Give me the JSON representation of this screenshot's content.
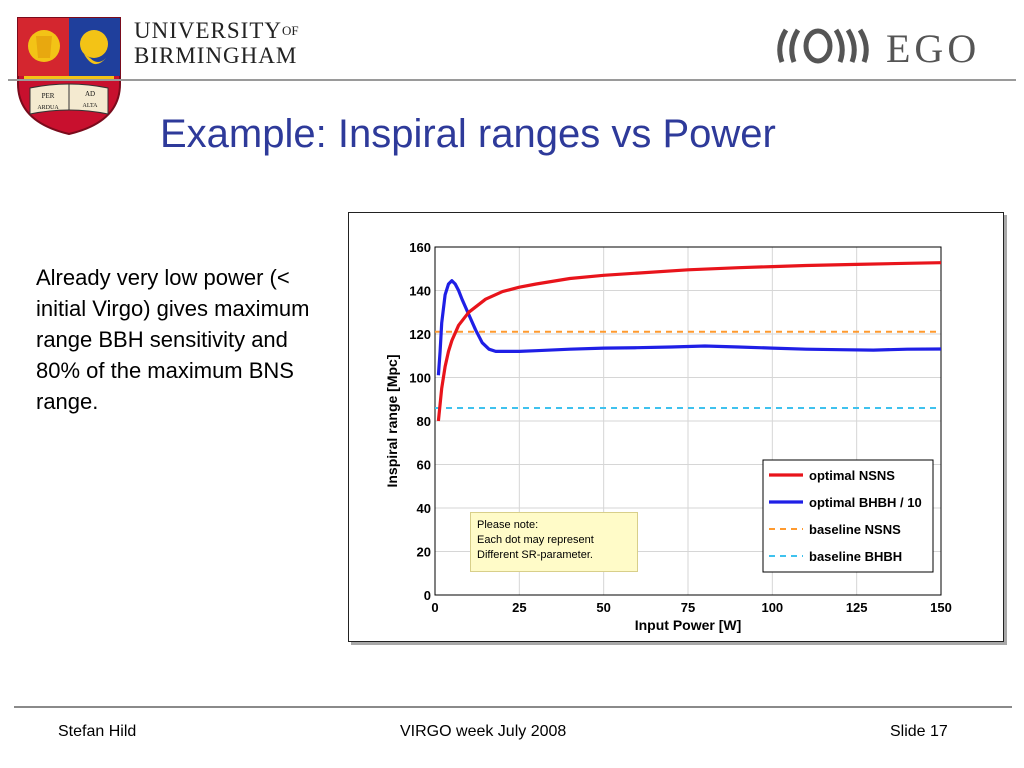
{
  "header": {
    "uni_line1": "UNIVERSITY",
    "uni_of": "OF",
    "uni_line2": "BIRMINGHAM",
    "shield_motto_1": "PER",
    "shield_motto_2": "AD",
    "shield_motto_3": "ARDUA",
    "shield_motto_4": "ALTA",
    "ego_text": "EGO"
  },
  "slide": {
    "title": "Example: Inspiral ranges vs Power",
    "body": "Already very low power (< initial Virgo) gives maximum range BBH sensitivity and 80% of the maximum BNS range."
  },
  "note": {
    "line1": "Please note:",
    "line2": "Each dot may represent",
    "line3": "Different SR-parameter."
  },
  "footer": {
    "author": "Stefan Hild",
    "event": "VIRGO week July 2008",
    "slide": "Slide 17"
  },
  "chart_data": {
    "type": "line",
    "xlabel": "Input Power [W]",
    "ylabel": "Inspiral range [Mpc]",
    "xlim": [
      0,
      150
    ],
    "ylim": [
      0,
      160
    ],
    "xticks": [
      0,
      25,
      50,
      75,
      100,
      125,
      150
    ],
    "yticks": [
      0,
      20,
      40,
      60,
      80,
      100,
      120,
      140,
      160
    ],
    "grid": true,
    "legend_position": "bottom-right",
    "series": [
      {
        "name": "optimal NSNS",
        "color": "#e8141b",
        "style": "solid",
        "x": [
          1,
          2,
          3,
          4,
          5,
          7,
          10,
          15,
          20,
          25,
          30,
          40,
          50,
          60,
          75,
          90,
          100,
          110,
          125,
          140,
          150
        ],
        "y": [
          80,
          95,
          105,
          112,
          117,
          124,
          130,
          136,
          139.5,
          141.5,
          143,
          145.5,
          147,
          148,
          149.5,
          150.5,
          151,
          151.5,
          152,
          152.5,
          152.8
        ]
      },
      {
        "name": "optimal BHBH / 10",
        "color": "#1f1fe6",
        "style": "solid",
        "x": [
          1,
          1.5,
          2,
          3,
          4,
          5,
          6,
          7,
          8,
          10,
          12,
          14,
          16,
          18,
          20,
          25,
          30,
          40,
          50,
          60,
          70,
          80,
          90,
          100,
          110,
          120,
          130,
          140,
          150
        ],
        "y": [
          101,
          112,
          125,
          138,
          143,
          144.5,
          143,
          140,
          136,
          129,
          122,
          116,
          113,
          112,
          112,
          112,
          112.3,
          113,
          113.5,
          113.7,
          114,
          114.5,
          114,
          113.5,
          113,
          112.8,
          112.6,
          113,
          113.1
        ]
      },
      {
        "name": "baseline NSNS",
        "color": "#ff9a2e",
        "style": "dashed",
        "x": [
          0,
          150
        ],
        "y": [
          121,
          121
        ]
      },
      {
        "name": "baseline BHBH",
        "color": "#3fc2ee",
        "style": "dashed",
        "x": [
          0,
          150
        ],
        "y": [
          86,
          86
        ]
      }
    ]
  }
}
